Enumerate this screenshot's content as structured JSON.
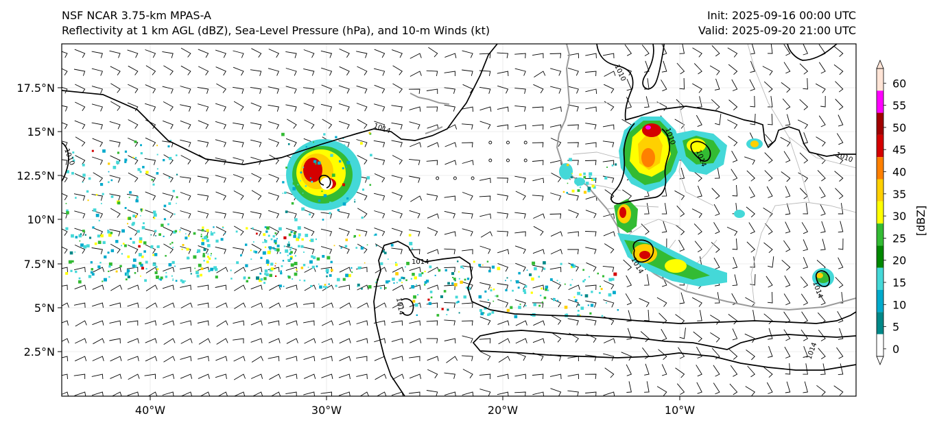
{
  "header": {
    "model": "NSF NCAR 3.75-km MPAS-A",
    "fields": "Reflectivity at 1 km AGL (dBZ), Sea-Level Pressure (hPa), and 10-m Winds (kt)",
    "init": "Init: 2025-09-16 00:00 UTC",
    "valid": "Valid: 2025-09-20 21:00 UTC"
  },
  "map": {
    "lat_labels": [
      "17.5°N",
      "15°N",
      "12.5°N",
      "10°N",
      "7.5°N",
      "5°N",
      "2.5°N"
    ],
    "lon_labels": [
      "40°W",
      "30°W",
      "20°W",
      "10°W"
    ],
    "isobar_labels": [
      "1014",
      "1010",
      "1010",
      "1010",
      "1014",
      "1014",
      "1014",
      "1014",
      "1010",
      "1014",
      "1014"
    ]
  },
  "colorbar": {
    "ticks": [
      "60",
      "55",
      "50",
      "45",
      "40",
      "35",
      "30",
      "25",
      "20",
      "15",
      "10",
      "5",
      "0"
    ],
    "label": "[dBZ]",
    "colors": [
      "#ffe4d6",
      "#ff00ff",
      "#a00000",
      "#d40000",
      "#ff8000",
      "#ffd000",
      "#ffff00",
      "#33bb33",
      "#008800",
      "#44d8d8",
      "#00aacc",
      "#008888",
      "#ffffff"
    ]
  }
}
